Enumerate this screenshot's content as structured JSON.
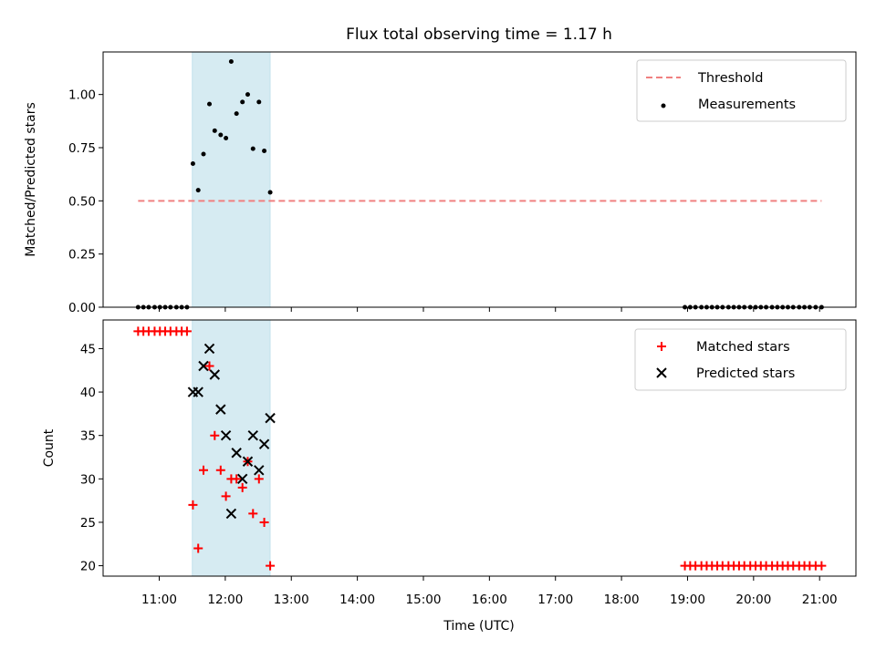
{
  "chart_data": {
    "title": "Flux total observing time = 1.17 h",
    "xlabel": "Time (UTC)",
    "x_tick_labels": [
      "11:00",
      "12:00",
      "13:00",
      "14:00",
      "15:00",
      "16:00",
      "17:00",
      "18:00",
      "19:00",
      "20:00",
      "21:00"
    ],
    "x_tick_hours": [
      11,
      12,
      13,
      14,
      15,
      16,
      17,
      18,
      19,
      20,
      21
    ],
    "xlim_hours": [
      10.15,
      21.55
    ],
    "shaded_span_hours": [
      11.5,
      12.68
    ],
    "shade_color": "#add8e6",
    "panels": [
      {
        "type": "scatter",
        "ylabel": "Matched/Predicted stars",
        "ylim": [
          0,
          1.2
        ],
        "y_ticks": [
          0,
          0.25,
          0.5,
          0.75,
          1.0
        ],
        "y_tick_labels": [
          "0.00",
          "0.25",
          "0.50",
          "0.75",
          "1.00"
        ],
        "legend_position": "top-right",
        "threshold": {
          "name": "Threshold",
          "value": 0.5,
          "x_range": [
            10.68,
            21.03
          ],
          "color": "#f08080"
        },
        "series": [
          {
            "name": "Measurements",
            "color": "#000000",
            "x": [
              10.68,
              10.76,
              10.84,
              10.93,
              11.01,
              11.09,
              11.17,
              11.26,
              11.34,
              11.42,
              11.51,
              11.59,
              11.67,
              11.76,
              11.84,
              11.93,
              12.01,
              12.09,
              12.17,
              12.26,
              12.34,
              12.42,
              12.51,
              12.59,
              12.68,
              18.96,
              19.04,
              19.12,
              19.21,
              19.29,
              19.37,
              19.45,
              19.53,
              19.62,
              19.7,
              19.78,
              19.86,
              19.95,
              20.03,
              20.11,
              20.19,
              20.28,
              20.36,
              20.44,
              20.52,
              20.6,
              20.69,
              20.77,
              20.85,
              20.94,
              21.03
            ],
            "y": [
              0,
              0,
              0,
              0,
              0,
              0,
              0,
              0,
              0,
              0,
              0.675,
              0.55,
              0.72,
              0.955,
              0.83,
              0.81,
              0.795,
              1.155,
              0.91,
              0.965,
              1.0,
              0.745,
              0.965,
              0.735,
              0.54,
              0,
              0,
              0,
              0,
              0,
              0,
              0,
              0,
              0,
              0,
              0,
              0,
              0,
              0,
              0,
              0,
              0,
              0,
              0,
              0,
              0,
              0,
              0,
              0,
              0,
              0
            ]
          }
        ]
      },
      {
        "type": "scatter",
        "ylabel": "Count",
        "ylim": [
          18.8,
          48.3
        ],
        "y_ticks": [
          20,
          25,
          30,
          35,
          40,
          45
        ],
        "y_tick_labels": [
          "20",
          "25",
          "30",
          "35",
          "40",
          "45"
        ],
        "legend_position": "top-right",
        "series": [
          {
            "name": "Matched stars",
            "marker": "plus",
            "color": "#ff0000",
            "x": [
              10.68,
              10.76,
              10.84,
              10.93,
              11.01,
              11.09,
              11.17,
              11.26,
              11.34,
              11.42,
              11.51,
              11.59,
              11.67,
              11.76,
              11.84,
              11.93,
              12.01,
              12.09,
              12.17,
              12.26,
              12.34,
              12.42,
              12.51,
              12.59,
              12.68,
              18.96,
              19.04,
              19.12,
              19.21,
              19.29,
              19.37,
              19.45,
              19.53,
              19.62,
              19.7,
              19.78,
              19.86,
              19.95,
              20.03,
              20.11,
              20.19,
              20.28,
              20.36,
              20.44,
              20.52,
              20.6,
              20.69,
              20.77,
              20.85,
              20.94,
              21.03
            ],
            "y": [
              47,
              47,
              47,
              47,
              47,
              47,
              47,
              47,
              47,
              47,
              27,
              22,
              31,
              43,
              35,
              31,
              28,
              30,
              30,
              29,
              32,
              26,
              30,
              25,
              20,
              20,
              20,
              20,
              20,
              20,
              20,
              20,
              20,
              20,
              20,
              20,
              20,
              20,
              20,
              20,
              20,
              20,
              20,
              20,
              20,
              20,
              20,
              20,
              20,
              20,
              20
            ]
          },
          {
            "name": "Predicted stars",
            "marker": "x",
            "color": "#000000",
            "x": [
              11.51,
              11.59,
              11.67,
              11.76,
              11.84,
              11.93,
              12.01,
              12.09,
              12.17,
              12.26,
              12.34,
              12.42,
              12.51,
              12.59,
              12.68
            ],
            "y": [
              40,
              40,
              43,
              45,
              42,
              38,
              35,
              26,
              33,
              30,
              32,
              35,
              31,
              34,
              37
            ]
          }
        ]
      }
    ]
  }
}
